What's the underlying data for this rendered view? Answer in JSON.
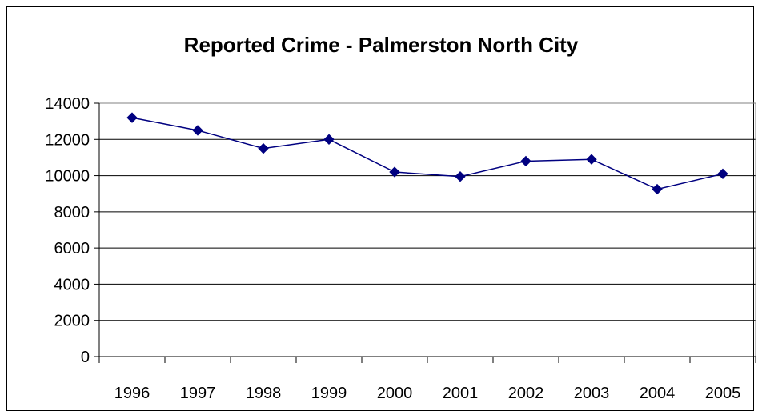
{
  "chart_data": {
    "type": "line",
    "title": "Reported Crime - Palmerston North City",
    "xlabel": "",
    "ylabel": "",
    "categories": [
      "1996",
      "1997",
      "1998",
      "1999",
      "2000",
      "2001",
      "2002",
      "2003",
      "2004",
      "2005"
    ],
    "series": [
      {
        "values": [
          13200,
          12500,
          11500,
          12000,
          10200,
          9950,
          10800,
          10900,
          9250,
          10100
        ]
      }
    ],
    "ylim": [
      0,
      14000
    ],
    "yticks": [
      0,
      2000,
      4000,
      6000,
      8000,
      10000,
      12000,
      14000
    ],
    "grid": true,
    "legend": "none",
    "colors": {
      "line": "#000080",
      "marker": "#000080",
      "grid": "#000000",
      "plot_border": "#808080"
    }
  }
}
